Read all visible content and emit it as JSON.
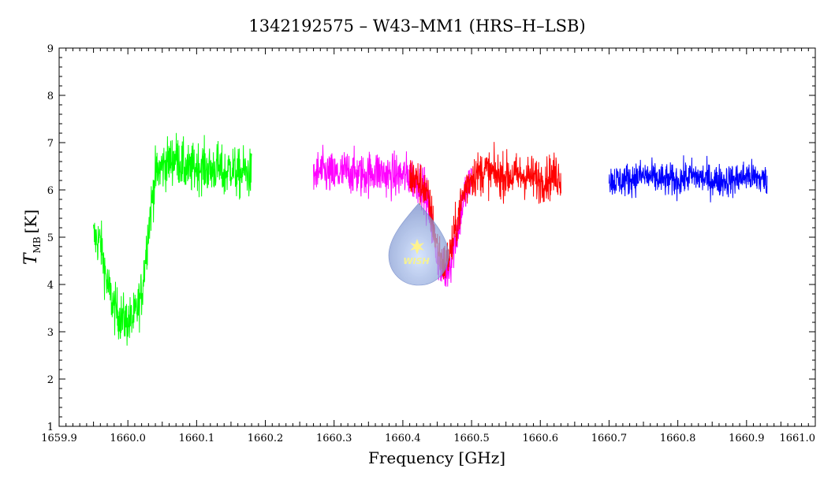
{
  "chart_data": {
    "type": "line",
    "title": "1342192575 – W43–MM1 (HRS–H–LSB)",
    "xlabel": "Frequency [GHz]",
    "ylabel_main": "T",
    "ylabel_sub": "MB",
    "ylabel_unit": "[K]",
    "xlim": [
      1659.9,
      1661.0
    ],
    "ylim": [
      1,
      9
    ],
    "xticks": [
      "1659.9",
      "1660.0",
      "1660.1",
      "1660.2",
      "1660.3",
      "1660.4",
      "1660.5",
      "1660.6",
      "1660.7",
      "1660.8",
      "1660.9",
      "1661.0"
    ],
    "yticks": [
      "1",
      "2",
      "3",
      "4",
      "5",
      "6",
      "7",
      "8",
      "9"
    ],
    "grid": false,
    "series": [
      {
        "color": "#00ff00",
        "x": [
          1659.95,
          1659.96,
          1659.97,
          1659.98,
          1659.99,
          1660.0,
          1660.01,
          1660.02,
          1660.03,
          1660.04,
          1660.05,
          1660.06,
          1660.07,
          1660.08,
          1660.09,
          1660.1,
          1660.11,
          1660.12,
          1660.13,
          1660.14,
          1660.15,
          1660.16,
          1660.17,
          1660.18
        ],
        "y": [
          5.0,
          4.9,
          4.0,
          3.5,
          3.3,
          3.2,
          3.3,
          3.8,
          5.2,
          6.3,
          6.5,
          6.6,
          6.7,
          6.5,
          6.4,
          6.5,
          6.5,
          6.4,
          6.5,
          6.3,
          6.5,
          6.3,
          6.4,
          6.3
        ],
        "noise": 0.45
      },
      {
        "color": "#ff00ff",
        "x": [
          1660.27,
          1660.28,
          1660.3,
          1660.32,
          1660.34,
          1660.36,
          1660.38,
          1660.4,
          1660.41,
          1660.42,
          1660.43,
          1660.44,
          1660.45,
          1660.46,
          1660.47,
          1660.48,
          1660.49,
          1660.5
        ],
        "y": [
          6.3,
          6.4,
          6.3,
          6.4,
          6.3,
          6.4,
          6.3,
          6.3,
          6.3,
          6.2,
          6.1,
          5.4,
          4.6,
          4.2,
          4.5,
          5.2,
          5.9,
          6.2
        ],
        "noise": 0.4
      },
      {
        "color": "#ff0000",
        "x": [
          1660.41,
          1660.42,
          1660.43,
          1660.44,
          1660.45,
          1660.46,
          1660.47,
          1660.48,
          1660.49,
          1660.5,
          1660.52,
          1660.54,
          1660.56,
          1660.58,
          1660.6,
          1660.62,
          1660.63
        ],
        "y": [
          6.3,
          6.2,
          6.1,
          5.6,
          4.8,
          4.4,
          4.7,
          5.4,
          6.0,
          6.3,
          6.4,
          6.3,
          6.3,
          6.3,
          6.2,
          6.3,
          6.3
        ],
        "noise": 0.4
      },
      {
        "color": "#0000ff",
        "x": [
          1660.7,
          1660.72,
          1660.75,
          1660.78,
          1660.8,
          1660.82,
          1660.85,
          1660.88,
          1660.9,
          1660.93
        ],
        "y": [
          6.2,
          6.2,
          6.3,
          6.2,
          6.2,
          6.3,
          6.2,
          6.2,
          6.3,
          6.2
        ],
        "noise": 0.3
      }
    ]
  },
  "watermark": {
    "text": "WISH",
    "fill_color": "#8fa6da",
    "star_color": "#fff27a"
  }
}
